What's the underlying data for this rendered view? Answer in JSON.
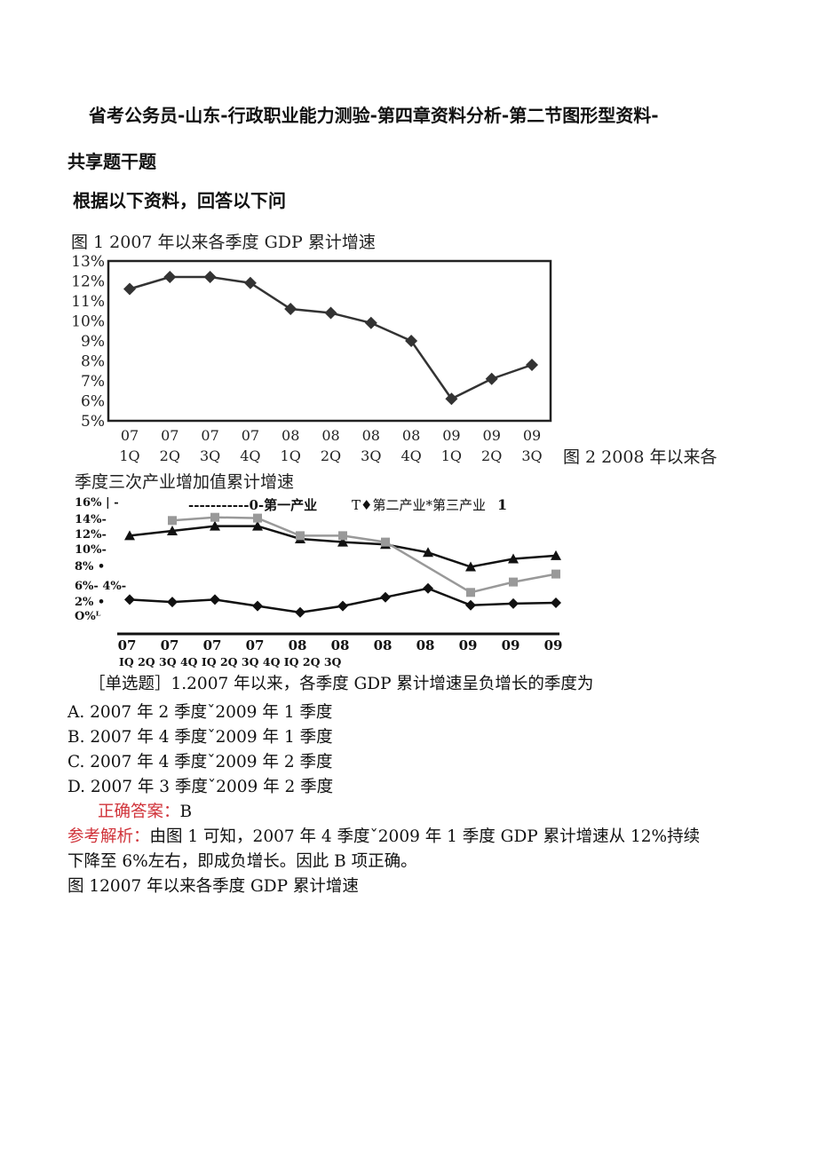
{
  "page": {
    "title": "省考公务员-山东-行政职业能力测验-第四章资料分析-第二节图形型资料-",
    "section": "共享题干题",
    "prompt": "根据以下资料，回答以下问"
  },
  "figure1": {
    "caption": "图 1   2007 年以来各季度 GDP 累计增速",
    "chart_data": {
      "type": "line",
      "title": "图 1   2007 年以来各季度 GDP 累计增速",
      "x_top": [
        "07",
        "07",
        "07",
        "07",
        "08",
        "08",
        "08",
        "08",
        "09",
        "09",
        "09"
      ],
      "x_bottom": [
        "1Q",
        "2Q",
        "3Q",
        "4Q",
        "1Q",
        "2Q",
        "3Q",
        "4Q",
        "1Q",
        "2Q",
        "3Q"
      ],
      "y_ticks": [
        "13%",
        "12%",
        "11%",
        "10%",
        "9%",
        "8%",
        "7%",
        "6%",
        "5%"
      ],
      "ylim": [
        5,
        13
      ],
      "series": [
        {
          "values": [
            11.6,
            12.2,
            12.2,
            11.9,
            10.6,
            10.4,
            9.9,
            9.0,
            6.1,
            7.1,
            7.8
          ]
        }
      ]
    }
  },
  "figure2": {
    "caption_tail": "图 2   2008 年以来各",
    "caption_line2": "季度三次产业增加值累计增速",
    "chart_data": {
      "type": "line",
      "legend_text": [
        "-----------0-第一产业",
        "T♦第二产业*第三产业",
        "1"
      ],
      "y_ticks": [
        "16% | -",
        "14%-",
        "12%-",
        "10%-",
        "8%   •",
        "6%- 4%-",
        "2%  •",
        "O%ᴸ"
      ],
      "ylim": [
        0,
        16
      ],
      "x_top": [
        "07",
        "07",
        "07",
        "07",
        "08",
        "08",
        "08",
        "08",
        "09",
        "09",
        "09"
      ],
      "x_bottom_text": "IQ 2Q 3Q 4Q IQ 2Q 3Q 4Q IQ 2Q 3Q",
      "series": [
        {
          "marker": "triangle",
          "color": "#111111",
          "values": [
            11.4,
            12.0,
            12.6,
            12.6,
            11.0,
            10.6,
            10.3,
            9.3,
            7.5,
            8.5,
            8.9
          ]
        },
        {
          "marker": "square",
          "color": "#999999",
          "values": [
            null,
            13.3,
            13.7,
            13.6,
            11.4,
            11.4,
            10.6,
            null,
            4.3,
            5.6,
            6.6
          ]
        },
        {
          "marker": "diamond",
          "color": "#111111",
          "values": [
            3.4,
            3.1,
            3.4,
            2.6,
            1.8,
            2.6,
            3.7,
            4.8,
            2.7,
            2.9,
            3.0
          ]
        }
      ]
    }
  },
  "question": {
    "stem": "［单选题］1.2007 年以来，各季度 GDP 累计增速呈负增长的季度为",
    "options": [
      "A. 2007 年 2 季度ˇ2009 年 1 季度",
      "B. 2007 年 4 季度ˇ2009 年 1 季度",
      "C. 2007 年 4 季度ˇ2009 年 2 季度",
      "D. 2007 年 3 季度ˇ2009 年 2 季度"
    ],
    "answer_label": "正确答案：",
    "answer_value": "B",
    "analysis_label": "参考解析：",
    "analysis_text": "由图 1 可知，2007 年 4 季度ˇ2009 年 1 季度 GDP 累计增速从 12%持续",
    "analysis_text2": "下降至 6%左右，即成负增长。因此 B 项正确。",
    "footer": "图 12007 年以来各季度 GDP 累计增速"
  },
  "colors": {
    "accent_red": "#d0333a",
    "marker_gray": "#999999"
  }
}
